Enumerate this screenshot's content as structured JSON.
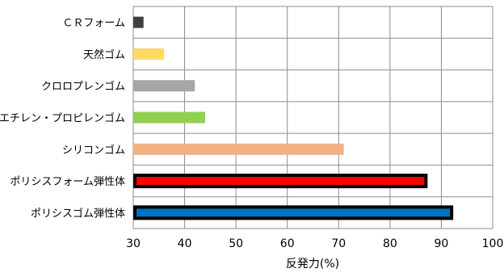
{
  "chart_data": {
    "type": "bar",
    "orientation": "horizontal",
    "title": "",
    "xlabel": "反発力(%)",
    "ylabel": "",
    "xlim": [
      30,
      100
    ],
    "xticks": [
      30,
      40,
      50,
      60,
      70,
      80,
      90,
      100
    ],
    "grid": true,
    "legend": "none",
    "categories": [
      "ＣＲフォーム",
      "天然ゴム",
      "クロロプレンゴム",
      "エチレン・プロピレンゴム",
      "シリコンゴム",
      "ポリシスフォーム弾性体",
      "ポリシスゴム弾性体"
    ],
    "values": [
      32,
      36,
      42,
      44,
      71,
      87,
      92
    ],
    "colors": [
      "#404040",
      "#FFD966",
      "#A6A6A6",
      "#92D050",
      "#F4B183",
      "#FF0000",
      "#0070C0"
    ],
    "outlined": [
      false,
      false,
      false,
      false,
      false,
      true,
      true
    ]
  }
}
